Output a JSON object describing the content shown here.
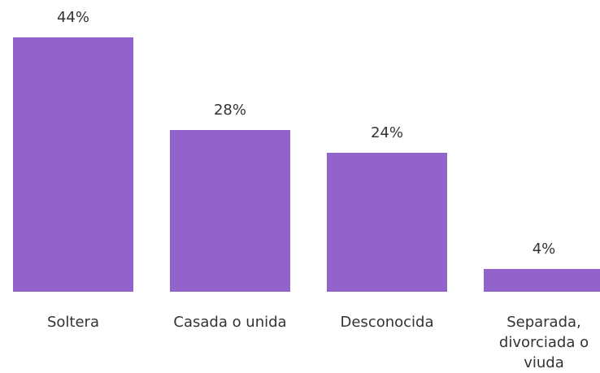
{
  "chart_data": {
    "type": "bar",
    "categories": [
      "Soltera",
      "Casada o unida",
      "Desconocida",
      "Separada, divorciada o viuda"
    ],
    "values": [
      44,
      28,
      24,
      4
    ],
    "value_labels": [
      "44%",
      "28%",
      "24%",
      "4%"
    ],
    "color": "#9163cb"
  }
}
